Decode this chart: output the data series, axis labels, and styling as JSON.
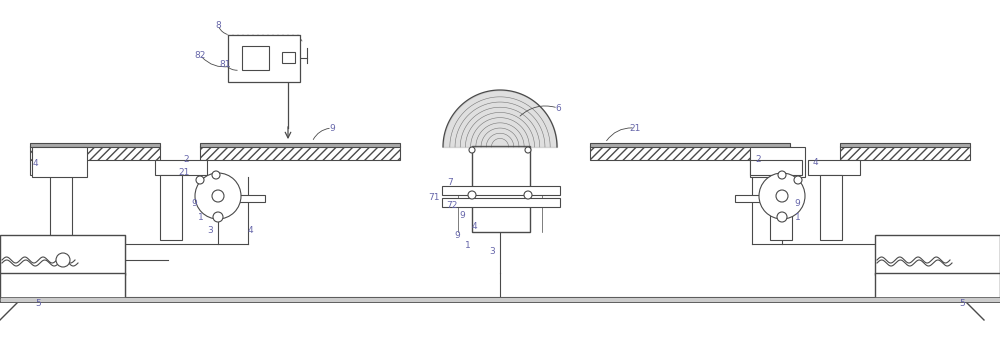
{
  "bg_color": "#ffffff",
  "line_color": "#4a4a4a",
  "label_color": "#6666aa",
  "fig_width": 10.0,
  "fig_height": 3.6,
  "dpi": 100
}
